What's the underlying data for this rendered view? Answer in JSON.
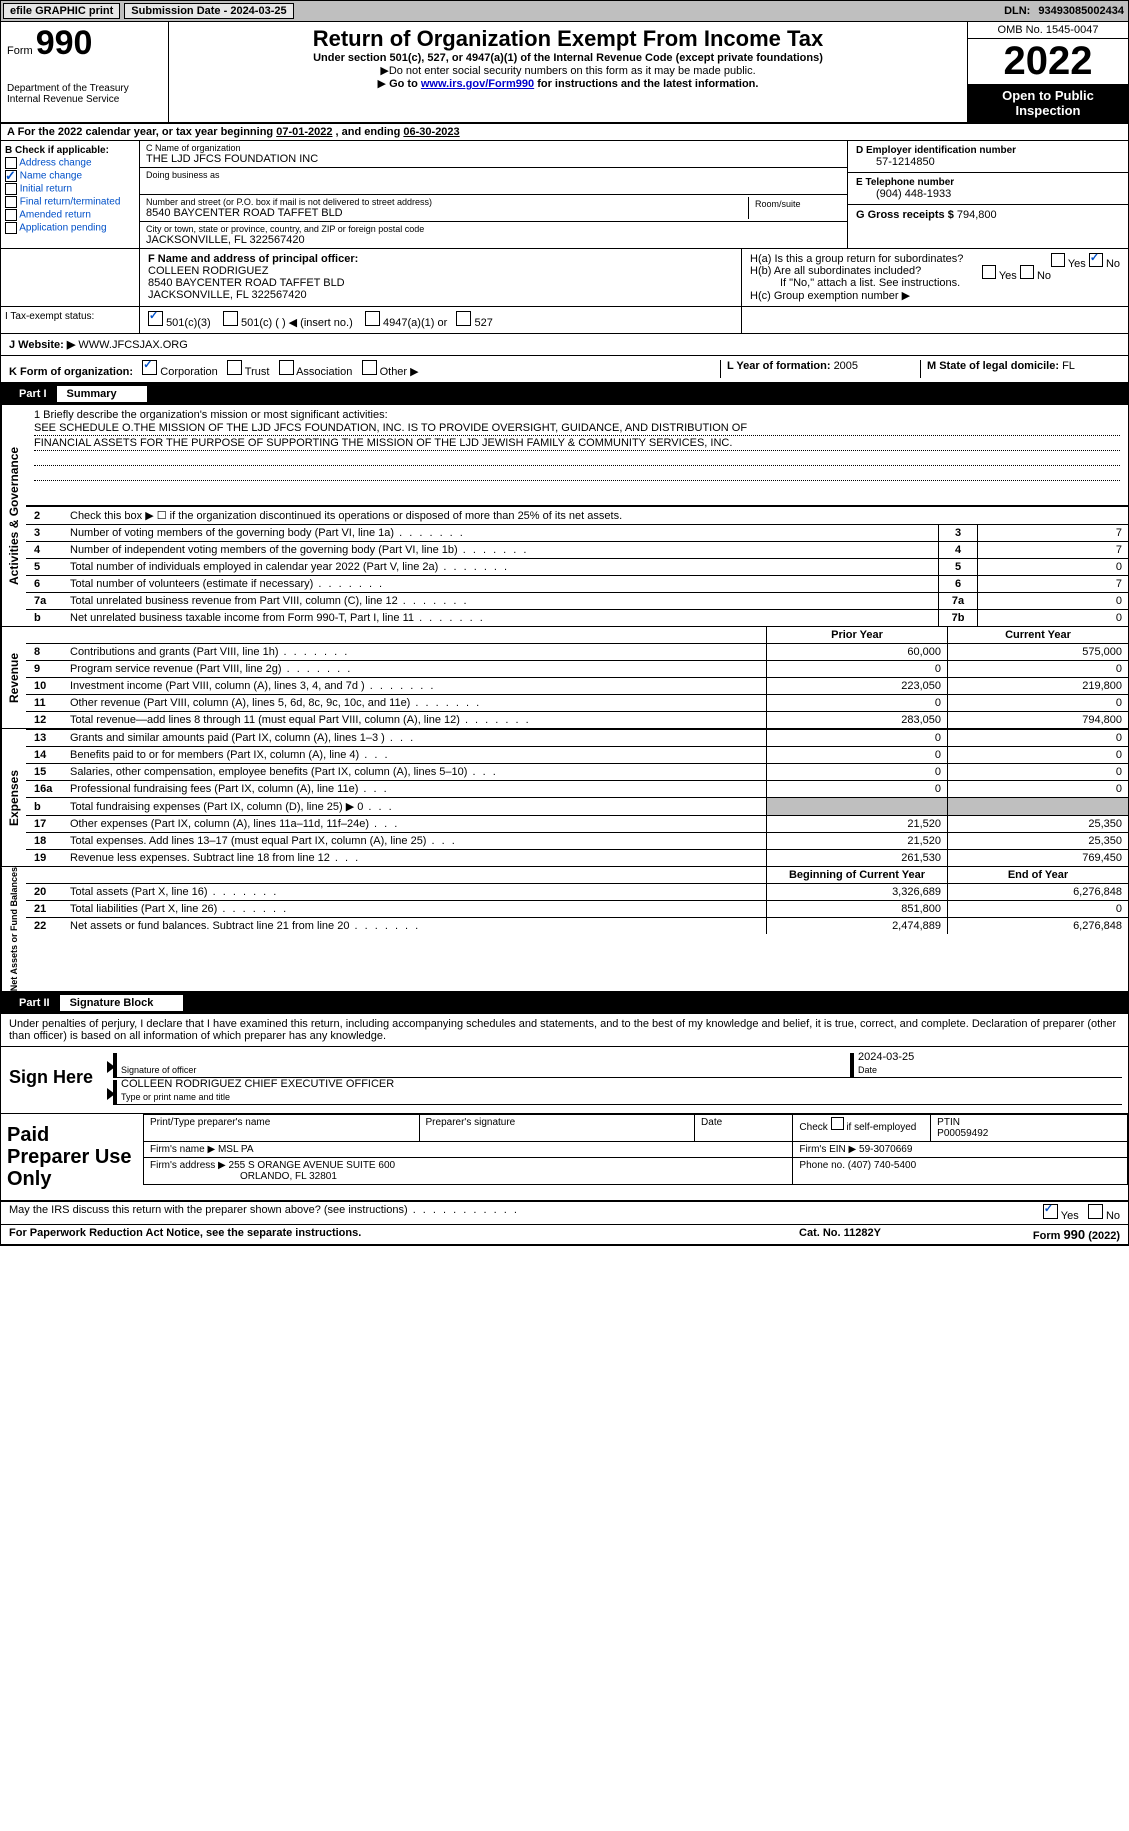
{
  "topbar": {
    "efile": "efile GRAPHIC print",
    "sub_label": "Submission Date - ",
    "sub_date": "2024-03-25",
    "dln_label": "DLN: ",
    "dln": "93493085002434"
  },
  "header": {
    "form_prefix": "Form",
    "form_no": "990",
    "dept": "Department of the Treasury",
    "irs": "Internal Revenue Service",
    "title": "Return of Organization Exempt From Income Tax",
    "subtitle": "Under section 501(c), 527, or 4947(a)(1) of the Internal Revenue Code (except private foundations)",
    "note1": "Do not enter social security numbers on this form as it may be made public.",
    "note2_pre": "Go to ",
    "note2_link": "www.irs.gov/Form990",
    "note2_post": " for instructions and the latest information.",
    "omb": "OMB No. 1545-0047",
    "year": "2022",
    "inspect": "Open to Public Inspection"
  },
  "line_a": {
    "text_pre": "A For the 2022 calendar year, or tax year beginning ",
    "begin": "07-01-2022",
    "mid": "   , and ending ",
    "end": "06-30-2023"
  },
  "box_b": {
    "heading": "B Check if applicable:",
    "opts": [
      {
        "label": "Address change",
        "checked": false
      },
      {
        "label": "Name change",
        "checked": true
      },
      {
        "label": "Initial return",
        "checked": false
      },
      {
        "label": "Final return/terminated",
        "checked": false
      },
      {
        "label": "Amended return",
        "checked": false
      },
      {
        "label": "Application pending",
        "checked": false
      }
    ]
  },
  "box_c": {
    "name_label": "C Name of organization",
    "name": "THE LJD JFCS FOUNDATION INC",
    "dba_label": "Doing business as",
    "addr_label": "Number and street (or P.O. box if mail is not delivered to street address)",
    "room_label": "Room/suite",
    "addr": "8540 BAYCENTER ROAD TAFFET BLD",
    "city_label": "City or town, state or province, country, and ZIP or foreign postal code",
    "city": "JACKSONVILLE, FL   322567420"
  },
  "box_d": {
    "label": "D Employer identification number",
    "val": "57-1214850"
  },
  "box_e": {
    "label": "E Telephone number",
    "val": "(904) 448-1933"
  },
  "box_g": {
    "label": "G Gross receipts $ ",
    "val": "794,800"
  },
  "box_f": {
    "label": "F Name and address of principal officer:",
    "name": "COLLEEN RODRIGUEZ",
    "addr1": "8540 BAYCENTER ROAD TAFFET BLD",
    "addr2": "JACKSONVILLE, FL   322567420"
  },
  "box_h": {
    "a": "H(a)  Is this a group return for subordinates?",
    "b": "H(b)  Are all subordinates included?",
    "note": "If \"No,\" attach a list. See instructions.",
    "c": "H(c)  Group exemption number ▶",
    "yes": "Yes",
    "no": "No"
  },
  "row_i": {
    "label": "I    Tax-exempt status:",
    "o1": "501(c)(3)",
    "o2": "501(c) (  ) ◀ (insert no.)",
    "o3": "4947(a)(1) or",
    "o4": "527"
  },
  "row_j": {
    "label": "J   Website: ▶ ",
    "val": "WWW.JFCSJAX.ORG"
  },
  "row_k": {
    "label": "K Form of organization:",
    "o1": "Corporation",
    "o2": "Trust",
    "o3": "Association",
    "o4": "Other ▶",
    "l_label": "L Year of formation: ",
    "l_val": "2005",
    "m_label": "M State of legal domicile: ",
    "m_val": "FL"
  },
  "part1": {
    "no": "Part I",
    "title": "Summary"
  },
  "mission": {
    "q": "1   Briefly describe the organization's mission or most significant activities:",
    "l1": "SEE SCHEDULE O.THE MISSION OF THE LJD JFCS FOUNDATION, INC. IS TO PROVIDE OVERSIGHT, GUIDANCE, AND DISTRIBUTION OF",
    "l2": "FINANCIAL ASSETS FOR THE PURPOSE OF SUPPORTING THE MISSION OF THE LJD JEWISH FAMILY & COMMUNITY SERVICES, INC."
  },
  "gov_rows": [
    {
      "n": "2",
      "label": "Check this box ▶ ☐ if the organization discontinued its operations or disposed of more than 25% of its net assets.",
      "box": "",
      "v": ""
    },
    {
      "n": "3",
      "label": "Number of voting members of the governing body (Part VI, line 1a)",
      "box": "3",
      "v": "7"
    },
    {
      "n": "4",
      "label": "Number of independent voting members of the governing body (Part VI, line 1b)",
      "box": "4",
      "v": "7"
    },
    {
      "n": "5",
      "label": "Total number of individuals employed in calendar year 2022 (Part V, line 2a)",
      "box": "5",
      "v": "0"
    },
    {
      "n": "6",
      "label": "Total number of volunteers (estimate if necessary)",
      "box": "6",
      "v": "7"
    },
    {
      "n": "7a",
      "label": "Total unrelated business revenue from Part VIII, column (C), line 12",
      "box": "7a",
      "v": "0"
    },
    {
      "n": " b",
      "label": "Net unrelated business taxable income from Form 990-T, Part I, line 11",
      "box": "7b",
      "v": "0"
    }
  ],
  "col_headers": {
    "prior": "Prior Year",
    "current": "Current Year"
  },
  "revenue_rows": [
    {
      "n": "8",
      "label": "Contributions and grants (Part VIII, line 1h)",
      "p": "60,000",
      "c": "575,000"
    },
    {
      "n": "9",
      "label": "Program service revenue (Part VIII, line 2g)",
      "p": "0",
      "c": "0"
    },
    {
      "n": "10",
      "label": "Investment income (Part VIII, column (A), lines 3, 4, and 7d )",
      "p": "223,050",
      "c": "219,800"
    },
    {
      "n": "11",
      "label": "Other revenue (Part VIII, column (A), lines 5, 6d, 8c, 9c, 10c, and 11e)",
      "p": "0",
      "c": "0"
    },
    {
      "n": "12",
      "label": "Total revenue—add lines 8 through 11 (must equal Part VIII, column (A), line 12)",
      "p": "283,050",
      "c": "794,800"
    }
  ],
  "expense_rows": [
    {
      "n": "13",
      "label": "Grants and similar amounts paid (Part IX, column (A), lines 1–3 )",
      "p": "0",
      "c": "0"
    },
    {
      "n": "14",
      "label": "Benefits paid to or for members (Part IX, column (A), line 4)",
      "p": "0",
      "c": "0"
    },
    {
      "n": "15",
      "label": "Salaries, other compensation, employee benefits (Part IX, column (A), lines 5–10)",
      "p": "0",
      "c": "0"
    },
    {
      "n": "16a",
      "label": "Professional fundraising fees (Part IX, column (A), line 11e)",
      "p": "0",
      "c": "0"
    },
    {
      "n": "  b",
      "label": "Total fundraising expenses (Part IX, column (D), line 25) ▶ 0",
      "p": "",
      "c": "",
      "grey": true
    },
    {
      "n": "17",
      "label": "Other expenses (Part IX, column (A), lines 11a–11d, 11f–24e)",
      "p": "21,520",
      "c": "25,350"
    },
    {
      "n": "18",
      "label": "Total expenses. Add lines 13–17 (must equal Part IX, column (A), line 25)",
      "p": "21,520",
      "c": "25,350"
    },
    {
      "n": "19",
      "label": "Revenue less expenses. Subtract line 18 from line 12",
      "p": "261,530",
      "c": "769,450"
    }
  ],
  "net_headers": {
    "begin": "Beginning of Current Year",
    "end": "End of Year"
  },
  "net_rows": [
    {
      "n": "20",
      "label": "Total assets (Part X, line 16)",
      "p": "3,326,689",
      "c": "6,276,848"
    },
    {
      "n": "21",
      "label": "Total liabilities (Part X, line 26)",
      "p": "851,800",
      "c": "0"
    },
    {
      "n": "22",
      "label": "Net assets or fund balances. Subtract line 21 from line 20",
      "p": "2,474,889",
      "c": "6,276,848"
    }
  ],
  "vtabs": {
    "gov": "Activities & Governance",
    "rev": "Revenue",
    "exp": "Expenses",
    "net": "Net Assets or Fund Balances"
  },
  "part2": {
    "no": "Part II",
    "title": "Signature Block",
    "declaration": "Under penalties of perjury, I declare that I have examined this return, including accompanying schedules and statements, and to the best of my knowledge and belief, it is true, correct, and complete. Declaration of preparer (other than officer) is based on all information of which preparer has any knowledge."
  },
  "sign": {
    "heading": "Sign Here",
    "sig_officer_lbl": "Signature of officer",
    "date_lbl": "Date",
    "date_val": "2024-03-25",
    "name": "COLLEEN RODRIGUEZ  CHIEF EXECUTIVE OFFICER",
    "name_lbl": "Type or print name and title"
  },
  "prep": {
    "heading": "Paid Preparer Use Only",
    "h1": "Print/Type preparer's name",
    "h2": "Preparer's signature",
    "h3": "Date",
    "h4_pre": "Check ",
    "h4_post": " if self-employed",
    "h5_lbl": "PTIN",
    "h5_val": "P00059492",
    "firm_name_lbl": "Firm's name    ▶ ",
    "firm_name": "MSL PA",
    "firm_ein_lbl": "Firm's EIN ▶ ",
    "firm_ein": "59-3070669",
    "firm_addr_lbl": "Firm's address ▶ ",
    "firm_addr1": "255 S ORANGE AVENUE SUITE 600",
    "firm_addr2": "ORLANDO, FL  32801",
    "phone_lbl": "Phone no. ",
    "phone": "(407) 740-5400"
  },
  "footer": {
    "q": "May the IRS discuss this return with the preparer shown above? (see instructions)",
    "yes": "Yes",
    "no": "No",
    "paperwork": "For Paperwork Reduction Act Notice, see the separate instructions.",
    "cat": "Cat. No. 11282Y",
    "form": "Form 990 (2022)"
  }
}
